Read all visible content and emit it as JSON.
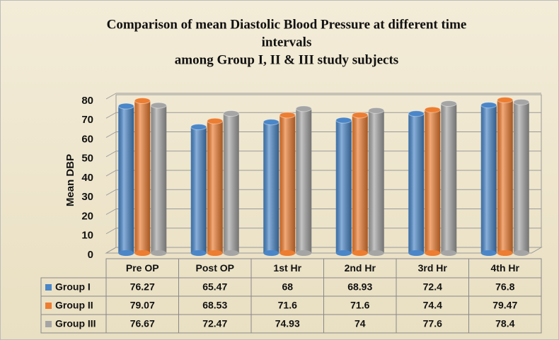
{
  "chart_data": {
    "type": "bar",
    "title": [
      "Comparison of mean Diastolic Blood Pressure at different time",
      "intervals",
      "among Group I, II & III study subjects"
    ],
    "y_label": "Mean DBP",
    "categories": [
      "Pre OP",
      "Post OP",
      "1st Hr",
      "2nd Hr",
      "3rd Hr",
      "4th Hr"
    ],
    "series": [
      {
        "name": "Group I",
        "color": "#4a86c8",
        "values": [
          76.27,
          65.47,
          68,
          68.93,
          72.4,
          76.8
        ]
      },
      {
        "name": "Group II",
        "color": "#ed7d31",
        "values": [
          79.07,
          68.53,
          71.6,
          71.6,
          74.4,
          79.47
        ]
      },
      {
        "name": "Group III",
        "color": "#a5a5a5",
        "values": [
          76.67,
          72.47,
          74.93,
          74,
          77.6,
          78.4
        ]
      }
    ],
    "ylim": [
      0,
      80
    ],
    "yticks": [
      0,
      10,
      20,
      30,
      40,
      50,
      60,
      70,
      80
    ],
    "grid": true,
    "data_table": true
  }
}
